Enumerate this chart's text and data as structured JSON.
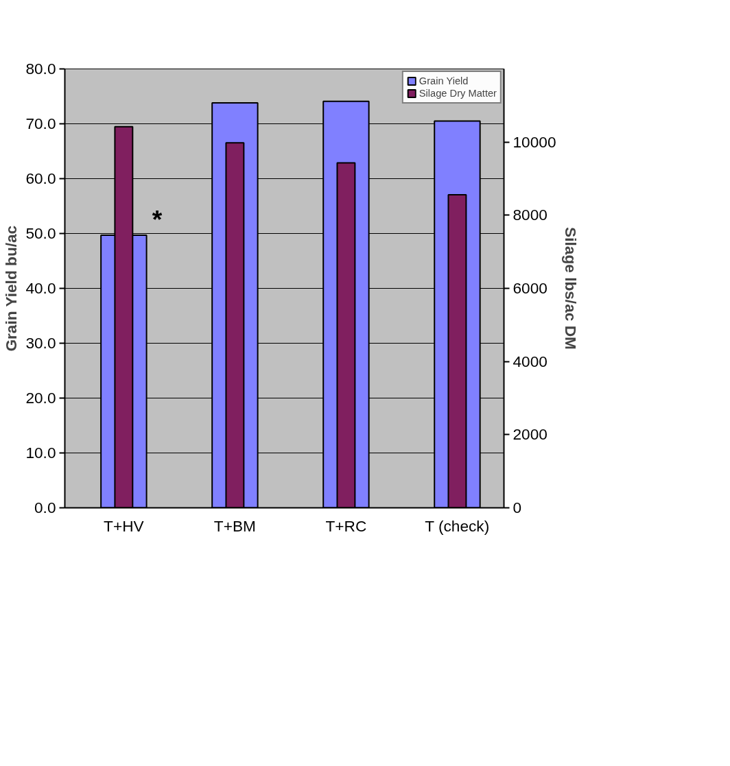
{
  "chart_data": {
    "type": "bar",
    "categories": [
      "T+HV",
      "T+BM",
      "T+RC",
      "T (check)"
    ],
    "series": [
      {
        "name": "Grain Yield",
        "color": "#8080ff",
        "values": [
          49.7,
          73.8,
          74.1,
          70.5
        ]
      },
      {
        "name": "Silage Dry Matter",
        "color": "#801f5f",
        "values": [
          10420,
          9980,
          9430,
          8560
        ],
        "axis": "y2"
      }
    ],
    "ylabel": "Grain Yield bu/ac",
    "y2label": "Silage lbs/ac DM",
    "ylim": [
      0,
      80
    ],
    "yticks": [
      {
        "value": 0,
        "label": "0.0"
      },
      {
        "value": 10,
        "label": "10.0"
      },
      {
        "value": 20,
        "label": "20.0"
      },
      {
        "value": 30,
        "label": "30.0"
      },
      {
        "value": 40,
        "label": "40.0"
      },
      {
        "value": 50,
        "label": "50.0"
      },
      {
        "value": 60,
        "label": "60.0"
      },
      {
        "value": 70,
        "label": "70.0"
      },
      {
        "value": 80,
        "label": "80.0"
      }
    ],
    "y2lim": [
      0,
      12000
    ],
    "y2ticks": [
      0,
      2000,
      4000,
      6000,
      8000,
      10000
    ],
    "annotations": [
      "*"
    ],
    "grid": "y",
    "legend": "top right"
  }
}
